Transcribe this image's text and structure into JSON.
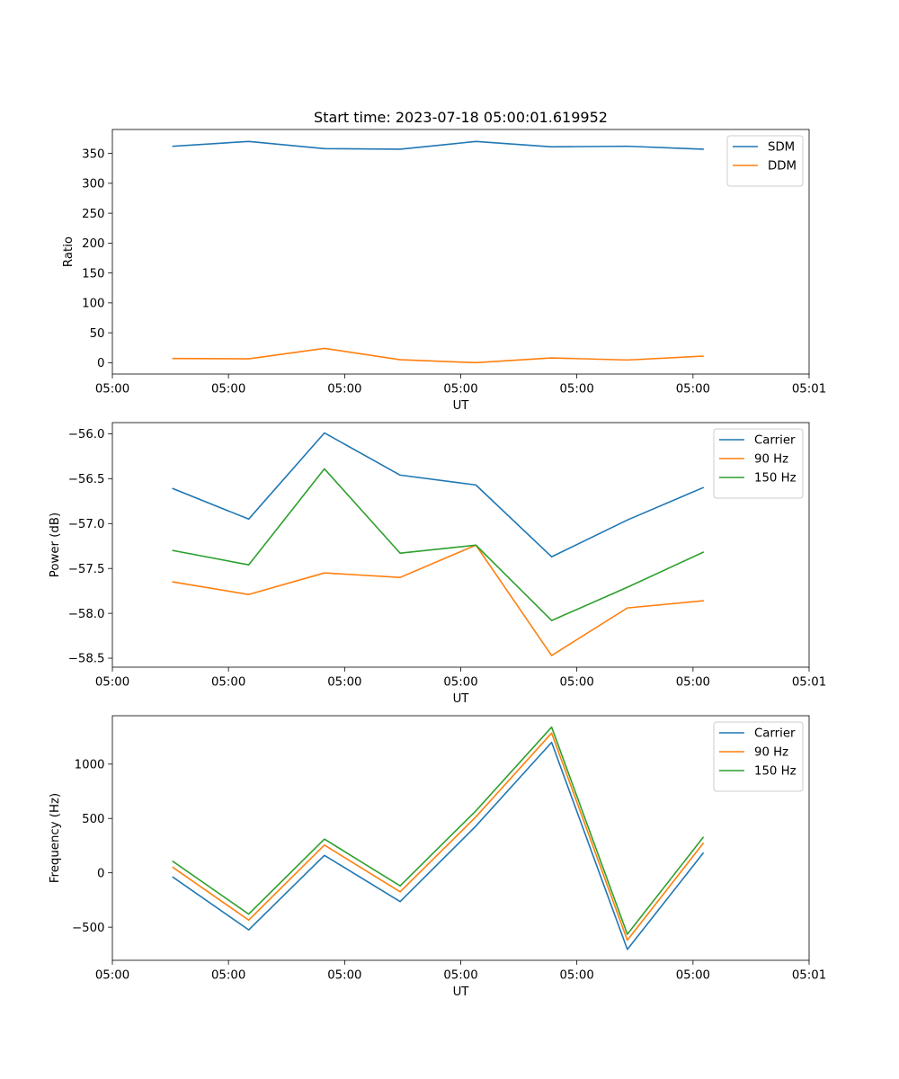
{
  "title": "Start time: 2023-07-18 05:00:01.619952",
  "chart_data": [
    {
      "type": "line",
      "id": "ratio",
      "title": "Start time: 2023-07-18 05:00:01.619952",
      "xlabel": "UT",
      "ylabel": "Ratio",
      "x": [
        1,
        2,
        3,
        4,
        5,
        6,
        7,
        8
      ],
      "xlim": [
        0.2,
        9.4
      ],
      "x_ticks": [
        0.2,
        1.733,
        3.267,
        4.8,
        6.333,
        7.867,
        9.4
      ],
      "x_tick_labels": [
        "05:00",
        "05:00",
        "05:00",
        "05:00",
        "05:00",
        "05:00",
        "05:01"
      ],
      "ylim": [
        -19,
        390
      ],
      "y_ticks": [
        0,
        50,
        100,
        150,
        200,
        250,
        300,
        350
      ],
      "y_tick_labels": [
        "0",
        "50",
        "100",
        "150",
        "200",
        "250",
        "300",
        "350"
      ],
      "legend": "top-right",
      "series": [
        {
          "name": "SDM",
          "color": "#1f77b4",
          "values": [
            362,
            370,
            358,
            357,
            370,
            361,
            362,
            357
          ]
        },
        {
          "name": "DDM",
          "color": "#ff7f0e",
          "values": [
            7,
            6.5,
            24,
            5,
            0,
            8,
            4.5,
            11
          ]
        }
      ]
    },
    {
      "type": "line",
      "id": "power",
      "title": "",
      "xlabel": "UT",
      "ylabel": "Power (dB)",
      "x": [
        1,
        2,
        3,
        4,
        5,
        6,
        7,
        8
      ],
      "xlim": [
        0.2,
        9.4
      ],
      "x_ticks": [
        0.2,
        1.733,
        3.267,
        4.8,
        6.333,
        7.867,
        9.4
      ],
      "x_tick_labels": [
        "05:00",
        "05:00",
        "05:00",
        "05:00",
        "05:00",
        "05:00",
        "05:01"
      ],
      "ylim": [
        -58.6,
        -55.875
      ],
      "y_ticks": [
        -58.5,
        -58.0,
        -57.5,
        -57.0,
        -56.5,
        -56.0
      ],
      "y_tick_labels": [
        "−58.5",
        "−58.0",
        "−57.5",
        "−57.0",
        "−56.5",
        "−56.0"
      ],
      "legend": "top-right",
      "series": [
        {
          "name": "Carrier",
          "color": "#1f77b4",
          "values": [
            -56.61,
            -56.95,
            -55.99,
            -56.46,
            -56.57,
            -57.37,
            -56.96,
            -56.6
          ]
        },
        {
          "name": "90 Hz",
          "color": "#ff7f0e",
          "values": [
            -57.65,
            -57.79,
            -57.55,
            -57.6,
            -57.24,
            -58.47,
            -57.94,
            -57.86
          ]
        },
        {
          "name": "150 Hz",
          "color": "#2ca02c",
          "values": [
            -57.3,
            -57.46,
            -56.39,
            -57.33,
            -57.24,
            -58.08,
            -57.71,
            -57.32
          ]
        }
      ]
    },
    {
      "type": "line",
      "id": "frequency",
      "title": "",
      "xlabel": "UT",
      "ylabel": "Frequency (Hz)",
      "x": [
        1,
        2,
        3,
        4,
        5,
        6,
        7,
        8
      ],
      "xlim": [
        0.2,
        9.4
      ],
      "x_ticks": [
        0.2,
        1.733,
        3.267,
        4.8,
        6.333,
        7.867,
        9.4
      ],
      "x_tick_labels": [
        "05:00",
        "05:00",
        "05:00",
        "05:00",
        "05:00",
        "05:00",
        "05:01"
      ],
      "ylim": [
        -805,
        1445
      ],
      "y_ticks": [
        -500,
        0,
        500,
        1000
      ],
      "y_tick_labels": [
        "−500",
        "0",
        "500",
        "1000"
      ],
      "legend": "top-right",
      "series": [
        {
          "name": "Carrier",
          "color": "#1f77b4",
          "values": [
            -40,
            -525,
            160,
            -265,
            430,
            1200,
            -705,
            180
          ]
        },
        {
          "name": "90 Hz",
          "color": "#ff7f0e",
          "values": [
            50,
            -435,
            255,
            -175,
            515,
            1285,
            -620,
            270
          ]
        },
        {
          "name": "150 Hz",
          "color": "#2ca02c",
          "values": [
            105,
            -380,
            310,
            -120,
            570,
            1340,
            -565,
            325
          ]
        }
      ]
    }
  ]
}
